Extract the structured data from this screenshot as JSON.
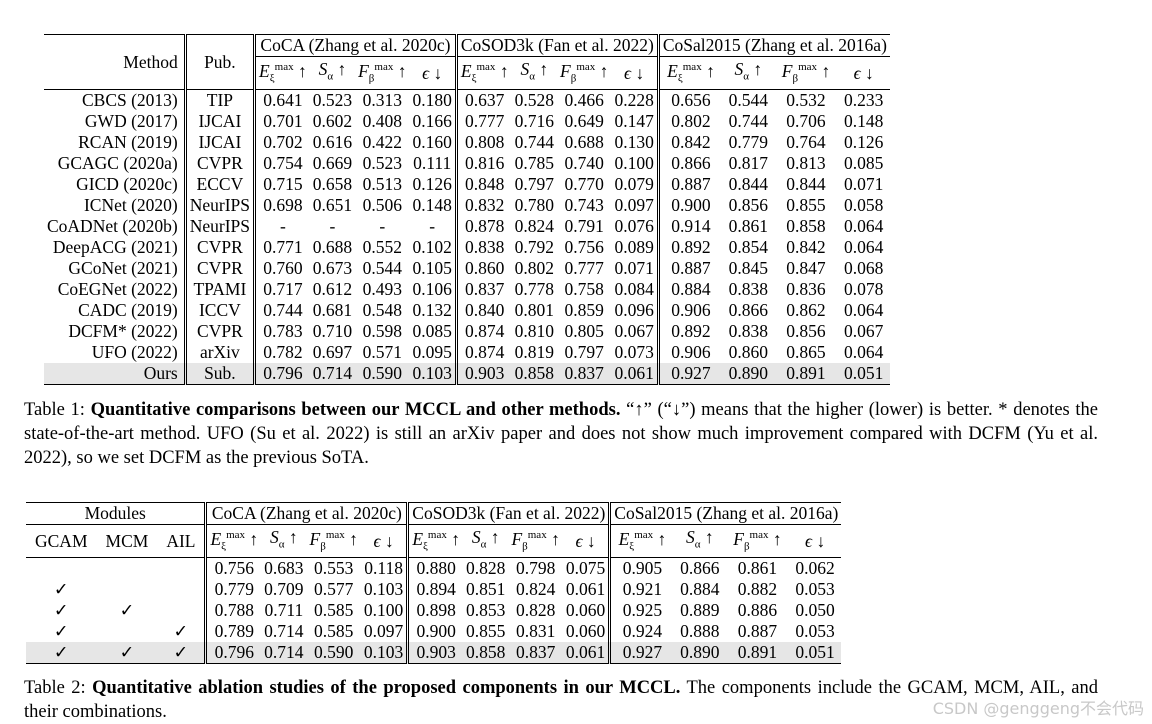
{
  "table1": {
    "header": {
      "method": "Method",
      "pub": "Pub.",
      "groups": [
        "CoCA (Zhang et al. 2020c)",
        "CoSOD3k (Fan et al. 2022)",
        "CoSal2015 (Zhang et al. 2016a)"
      ],
      "metrics": [
        "E_ξ^max ↑",
        "S_α ↑",
        "F_β^max ↑",
        "ϵ ↓"
      ]
    },
    "rows": [
      {
        "method": "CBCS (2013)",
        "pub": "TIP",
        "vals": [
          "0.641",
          "0.523",
          "0.313",
          "0.180",
          "0.637",
          "0.528",
          "0.466",
          "0.228",
          "0.656",
          "0.544",
          "0.532",
          "0.233"
        ]
      },
      {
        "method": "GWD (2017)",
        "pub": "IJCAI",
        "vals": [
          "0.701",
          "0.602",
          "0.408",
          "0.166",
          "0.777",
          "0.716",
          "0.649",
          "0.147",
          "0.802",
          "0.744",
          "0.706",
          "0.148"
        ]
      },
      {
        "method": "RCAN (2019)",
        "pub": "IJCAI",
        "vals": [
          "0.702",
          "0.616",
          "0.422",
          "0.160",
          "0.808",
          "0.744",
          "0.688",
          "0.130",
          "0.842",
          "0.779",
          "0.764",
          "0.126"
        ]
      },
      {
        "method": "GCAGC (2020a)",
        "pub": "CVPR",
        "vals": [
          "0.754",
          "0.669",
          "0.523",
          "0.111",
          "0.816",
          "0.785",
          "0.740",
          "0.100",
          "0.866",
          "0.817",
          "0.813",
          "0.085"
        ]
      },
      {
        "method": "GICD (2020c)",
        "pub": "ECCV",
        "vals": [
          "0.715",
          "0.658",
          "0.513",
          "0.126",
          "0.848",
          "0.797",
          "0.770",
          "0.079",
          "0.887",
          "0.844",
          "0.844",
          "0.071"
        ]
      },
      {
        "method": "ICNet (2020)",
        "pub": "NeurIPS",
        "vals": [
          "0.698",
          "0.651",
          "0.506",
          "0.148",
          "0.832",
          "0.780",
          "0.743",
          "0.097",
          "0.900",
          "0.856",
          "0.855",
          "0.058"
        ]
      },
      {
        "method": "CoADNet (2020b)",
        "pub": "NeurIPS",
        "vals": [
          "-",
          "-",
          "-",
          "-",
          "0.878",
          "0.824",
          "0.791",
          "0.076",
          "0.914",
          "0.861",
          "0.858",
          "0.064"
        ]
      },
      {
        "method": "DeepACG (2021)",
        "pub": "CVPR",
        "vals": [
          "0.771",
          "0.688",
          "0.552",
          "0.102",
          "0.838",
          "0.792",
          "0.756",
          "0.089",
          "0.892",
          "0.854",
          "0.842",
          "0.064"
        ]
      },
      {
        "method": "GCoNet (2021)",
        "pub": "CVPR",
        "vals": [
          "0.760",
          "0.673",
          "0.544",
          "0.105",
          "0.860",
          "0.802",
          "0.777",
          "0.071",
          "0.887",
          "0.845",
          "0.847",
          "0.068"
        ]
      },
      {
        "method": "CoEGNet (2022)",
        "pub": "TPAMI",
        "vals": [
          "0.717",
          "0.612",
          "0.493",
          "0.106",
          "0.837",
          "0.778",
          "0.758",
          "0.084",
          "0.884",
          "0.838",
          "0.836",
          "0.078"
        ]
      },
      {
        "method": "CADC (2019)",
        "pub": "ICCV",
        "vals": [
          "0.744",
          "0.681",
          "0.548",
          "0.132",
          "0.840",
          "0.801",
          "0.859",
          "0.096",
          "0.906",
          "0.866",
          "0.862",
          "0.064"
        ]
      },
      {
        "method": "DCFM* (2022)",
        "pub": "CVPR",
        "vals": [
          "0.783",
          "0.710",
          "0.598",
          "0.085",
          "0.874",
          "0.810",
          "0.805",
          "0.067",
          "0.892",
          "0.838",
          "0.856",
          "0.067"
        ]
      },
      {
        "method": "UFO (2022)",
        "pub": "arXiv",
        "vals": [
          "0.782",
          "0.697",
          "0.571",
          "0.095",
          "0.874",
          "0.819",
          "0.797",
          "0.073",
          "0.906",
          "0.860",
          "0.865",
          "0.064"
        ]
      },
      {
        "method": "Ours",
        "pub": "Sub.",
        "vals": [
          "0.796",
          "0.714",
          "0.590",
          "0.103",
          "0.903",
          "0.858",
          "0.837",
          "0.061",
          "0.927",
          "0.890",
          "0.891",
          "0.051"
        ]
      }
    ],
    "caption_label": "Table 1:",
    "caption_bold": "Quantitative comparisons between our MCCL and other methods.",
    "caption_rest": " “↑” (“↓”) means that the higher (lower) is better. * denotes the state-of-the-art method. UFO (Su et al. 2022) is still an arXiv paper and does not show much improvement compared with DCFM (Yu et al. 2022), so we set DCFM as the previous SoTA."
  },
  "table2": {
    "header": {
      "modules": "Modules",
      "module_names": [
        "GCAM",
        "MCM",
        "AIL"
      ],
      "groups": [
        "CoCA (Zhang et al. 2020c)",
        "CoSOD3k (Fan et al. 2022)",
        "CoSal2015 (Zhang et al. 2016a)"
      ]
    },
    "check": "✓",
    "rows": [
      {
        "m": [
          false,
          false,
          false
        ],
        "vals": [
          "0.756",
          "0.683",
          "0.553",
          "0.118",
          "0.880",
          "0.828",
          "0.798",
          "0.075",
          "0.905",
          "0.866",
          "0.861",
          "0.062"
        ]
      },
      {
        "m": [
          true,
          false,
          false
        ],
        "vals": [
          "0.779",
          "0.709",
          "0.577",
          "0.103",
          "0.894",
          "0.851",
          "0.824",
          "0.061",
          "0.921",
          "0.884",
          "0.882",
          "0.053"
        ]
      },
      {
        "m": [
          true,
          true,
          false
        ],
        "vals": [
          "0.788",
          "0.711",
          "0.585",
          "0.100",
          "0.898",
          "0.853",
          "0.828",
          "0.060",
          "0.925",
          "0.889",
          "0.886",
          "0.050"
        ]
      },
      {
        "m": [
          true,
          false,
          true
        ],
        "vals": [
          "0.789",
          "0.714",
          "0.585",
          "0.097",
          "0.900",
          "0.855",
          "0.831",
          "0.060",
          "0.924",
          "0.888",
          "0.887",
          "0.053"
        ]
      },
      {
        "m": [
          true,
          true,
          true
        ],
        "vals": [
          "0.796",
          "0.714",
          "0.590",
          "0.103",
          "0.903",
          "0.858",
          "0.837",
          "0.061",
          "0.927",
          "0.890",
          "0.891",
          "0.051"
        ]
      }
    ],
    "caption_label": "Table 2:",
    "caption_bold": "Quantitative ablation studies of the proposed components in our MCCL.",
    "caption_rest": " The components include the GCAM, MCM, AIL, and their combinations."
  },
  "watermark": "CSDN @genggeng不会代码"
}
